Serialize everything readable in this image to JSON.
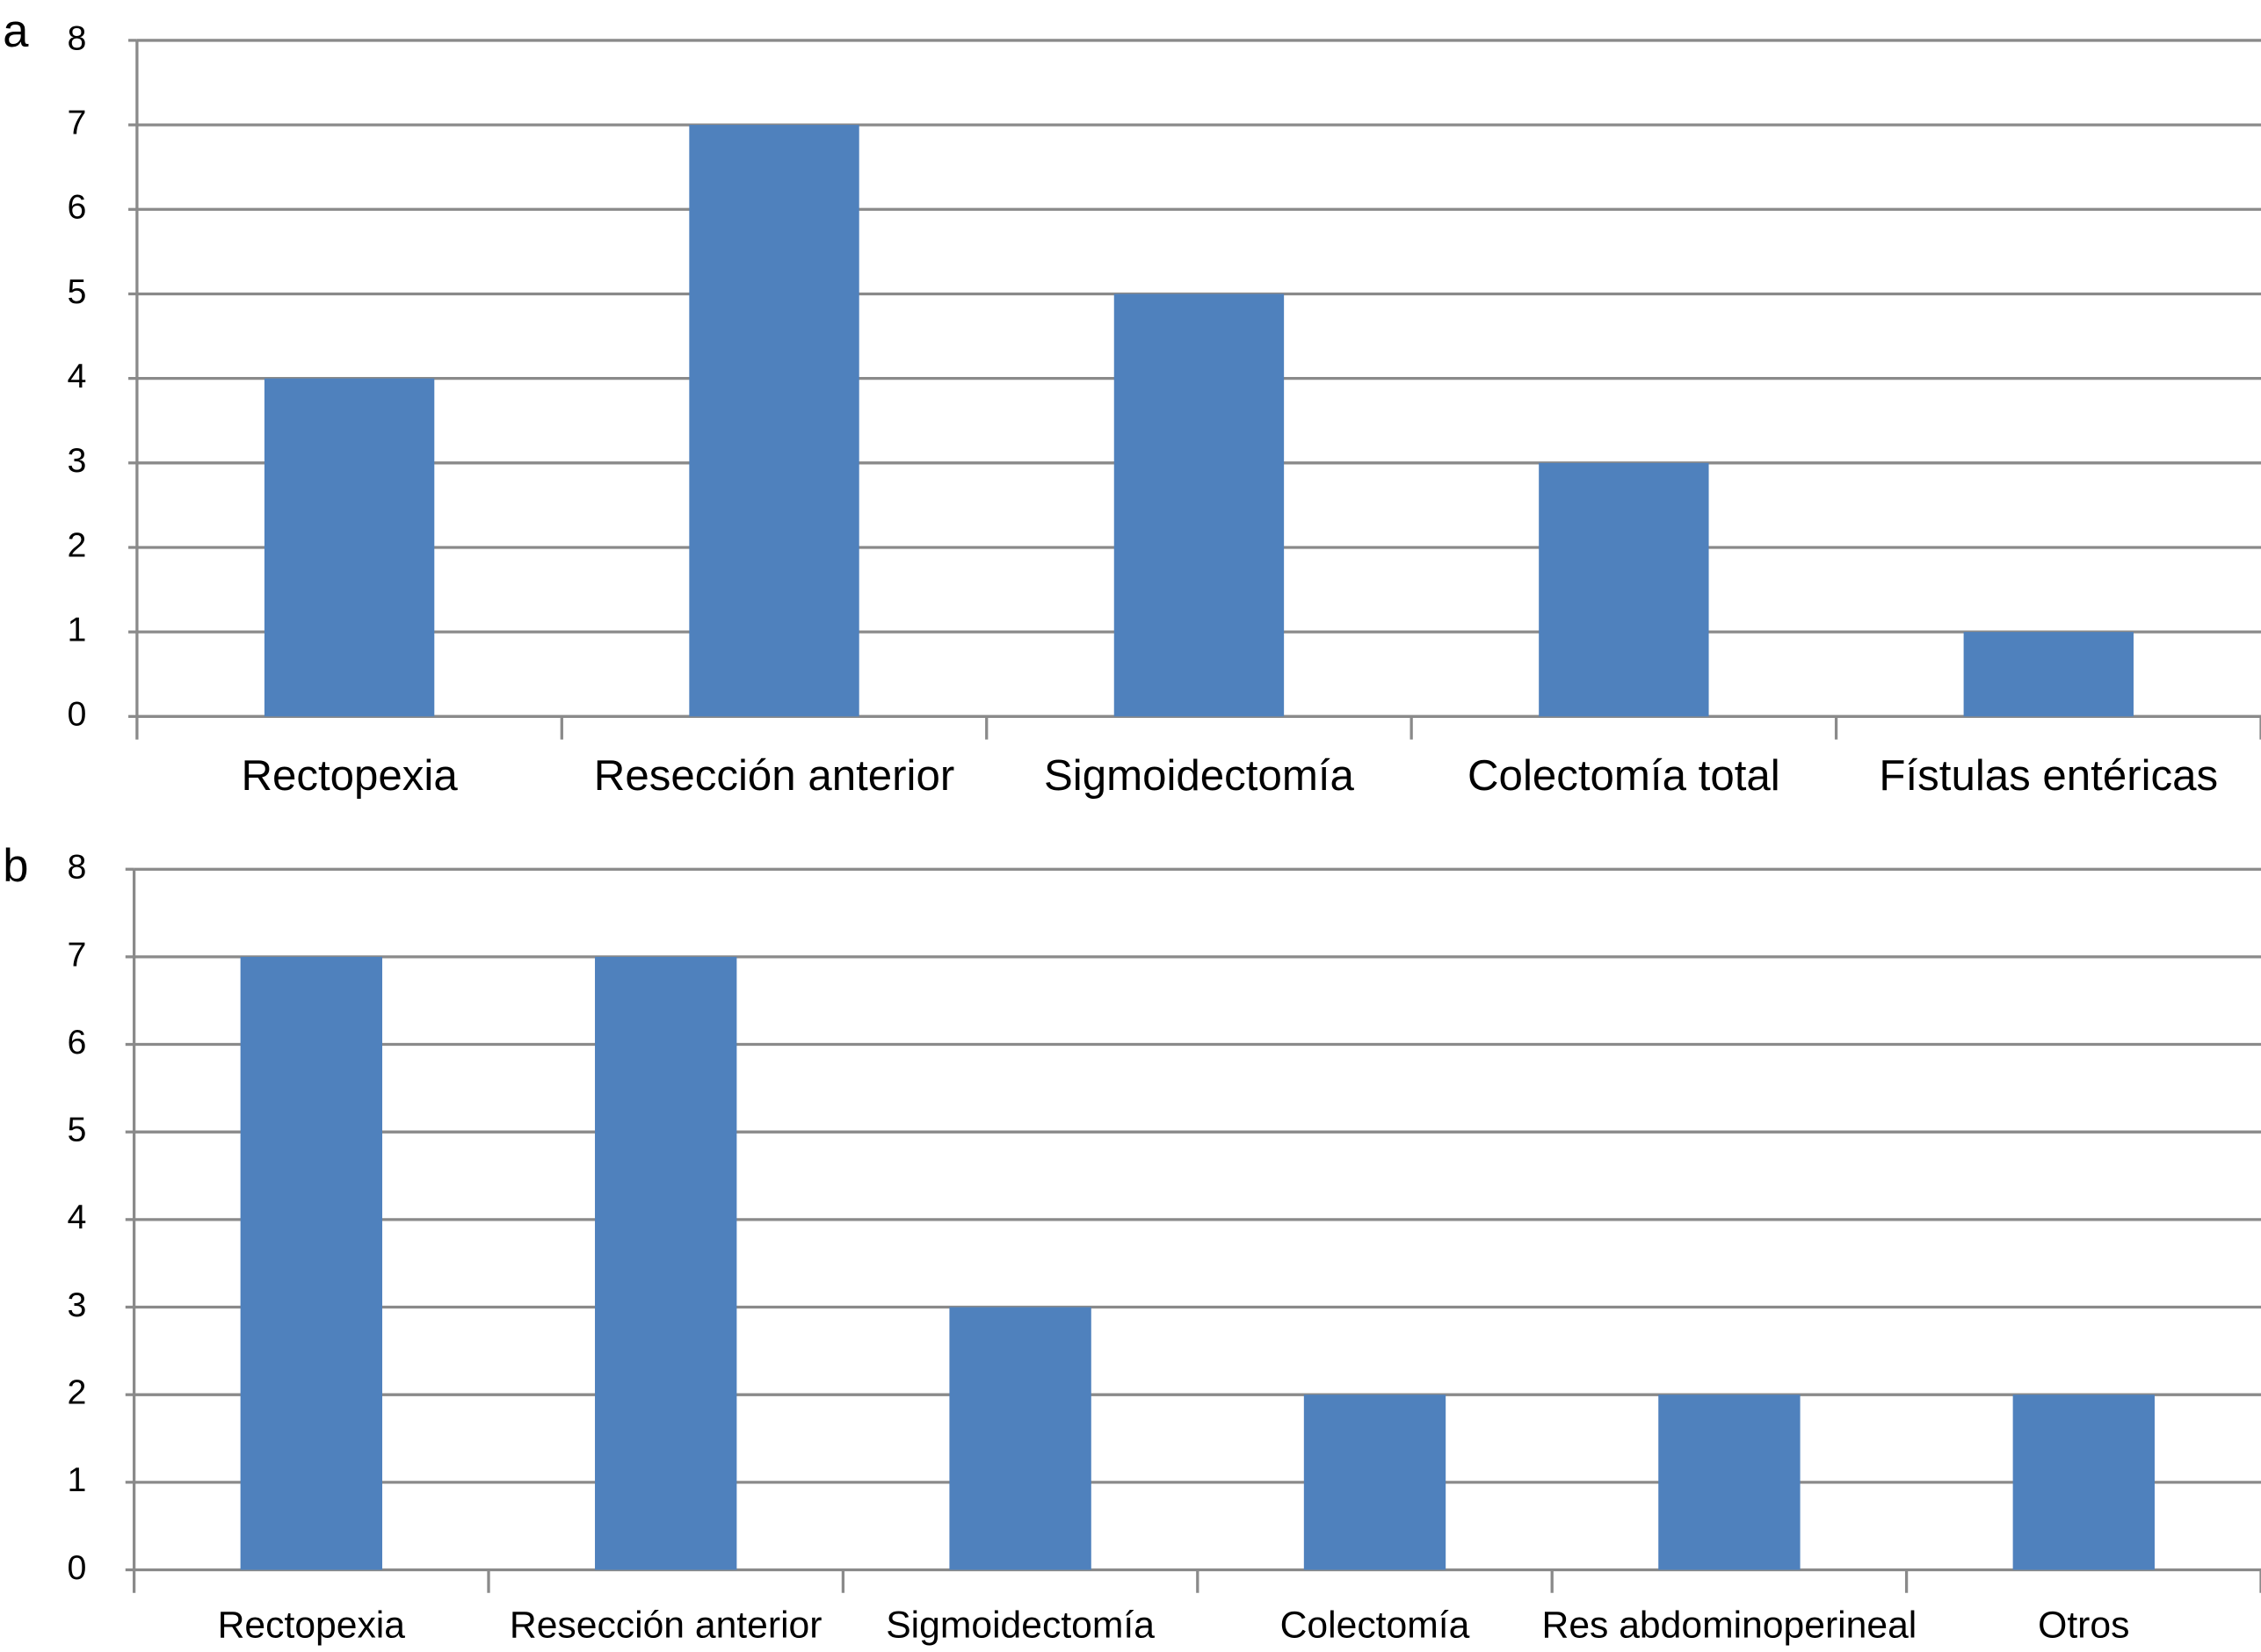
{
  "chart_data": [
    {
      "type": "bar",
      "panel_label": "a",
      "categories": [
        "Rectopexia",
        "Resección anterior",
        "Sigmoidectomía",
        "Colectomía total",
        "Fístulas entéricas"
      ],
      "values": [
        4,
        7,
        5,
        3,
        1
      ],
      "color": "#4f81bd",
      "ylim": [
        0,
        8
      ],
      "yticks": [
        0,
        1,
        2,
        3,
        4,
        5,
        6,
        7,
        8
      ],
      "grid": true
    },
    {
      "type": "bar",
      "panel_label": "b",
      "categories": [
        "Rectopexia",
        "Resección anterior",
        "Sigmoidectomía",
        "Colectomía",
        "Res abdominoperineal",
        "Otros"
      ],
      "values": [
        7,
        7,
        3,
        2,
        2,
        2
      ],
      "color": "#4f81bd",
      "ylim": [
        0,
        8
      ],
      "yticks": [
        0,
        1,
        2,
        3,
        4,
        5,
        6,
        7,
        8
      ],
      "grid": true
    }
  ]
}
